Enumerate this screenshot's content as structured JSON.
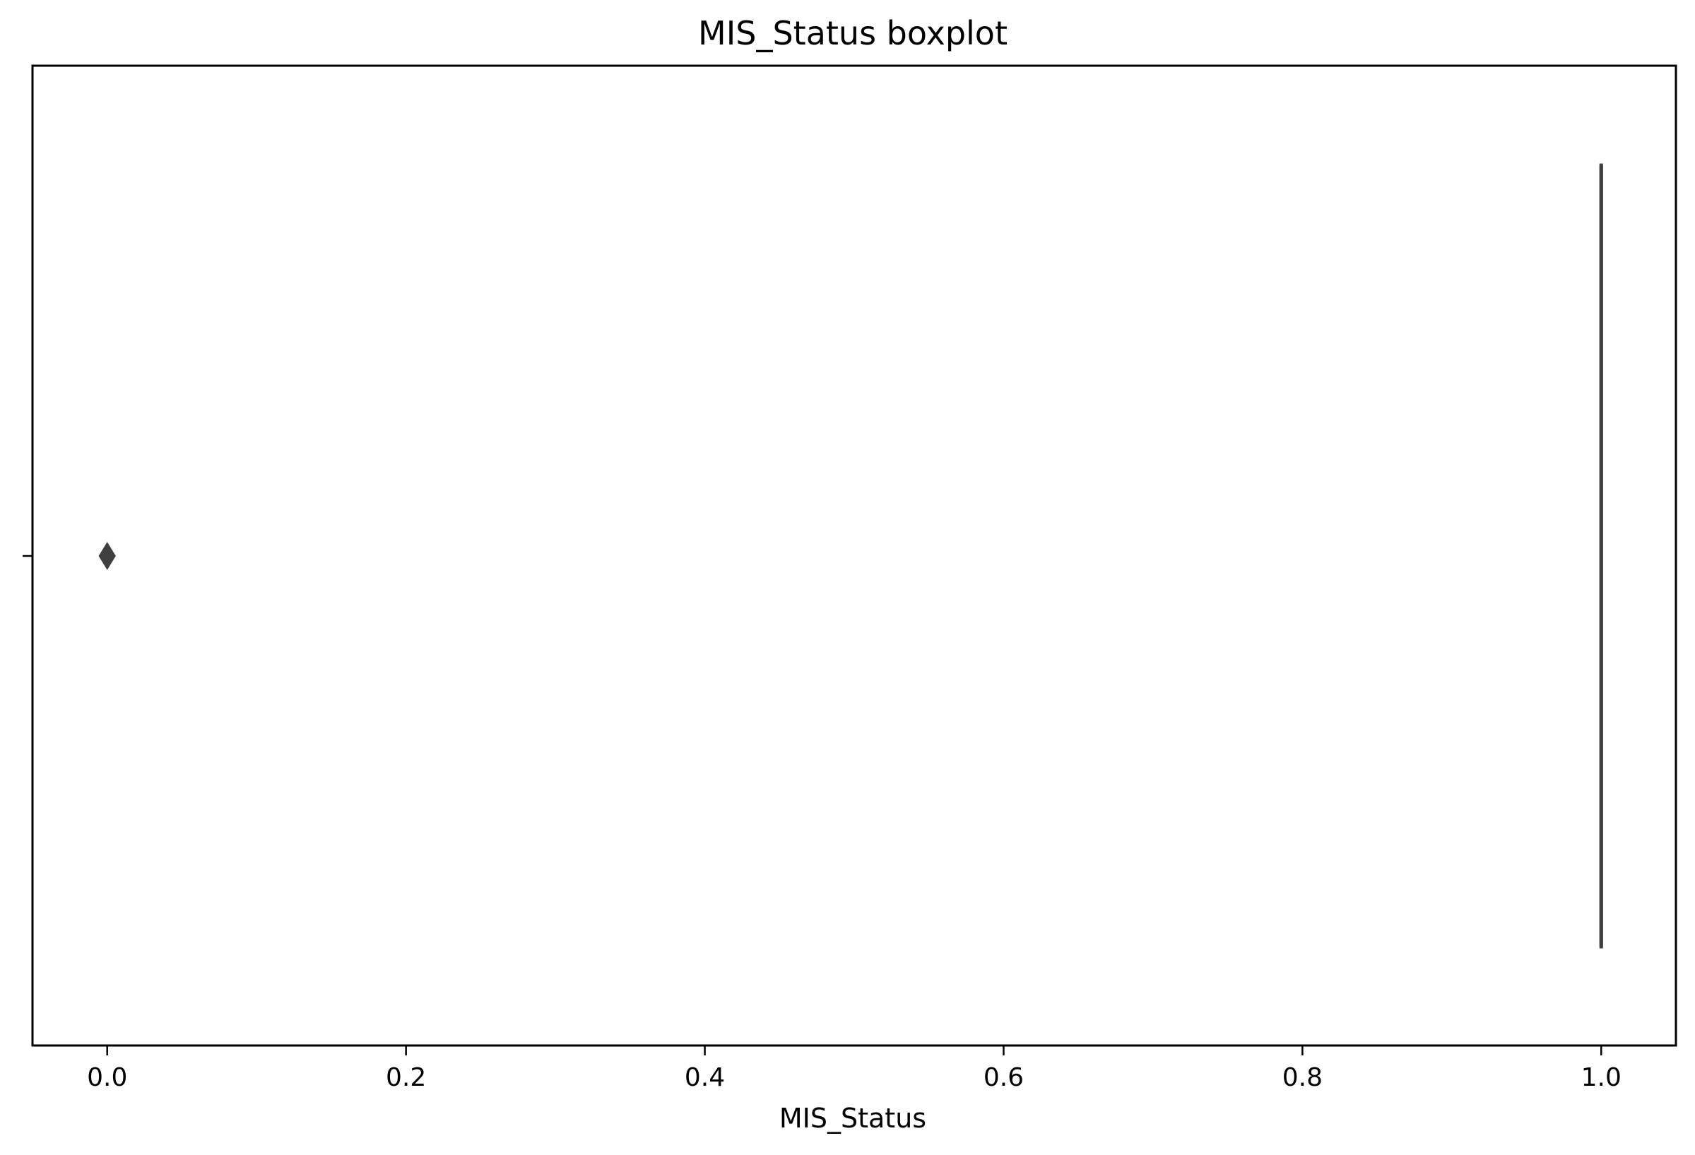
{
  "chart_data": {
    "type": "boxplot",
    "title": "MIS_Status boxplot",
    "xlabel": "MIS_Status",
    "ylabel": "",
    "orientation": "horizontal",
    "xlim": [
      -0.05,
      1.05
    ],
    "x_ticks": [
      0.0,
      0.2,
      0.4,
      0.6,
      0.8,
      1.0
    ],
    "x_tick_labels": [
      "0.0",
      "0.2",
      "0.4",
      "0.6",
      "0.8",
      "1.0"
    ],
    "grid": false,
    "box": {
      "whisker_low": 1.0,
      "q1": 1.0,
      "median": 1.0,
      "q3": 1.0,
      "whisker_high": 1.0
    },
    "outliers": [
      0.0
    ],
    "outlier_marker": "diamond",
    "colors": {
      "box": "#3f3f3f",
      "axes": "#000000"
    }
  }
}
